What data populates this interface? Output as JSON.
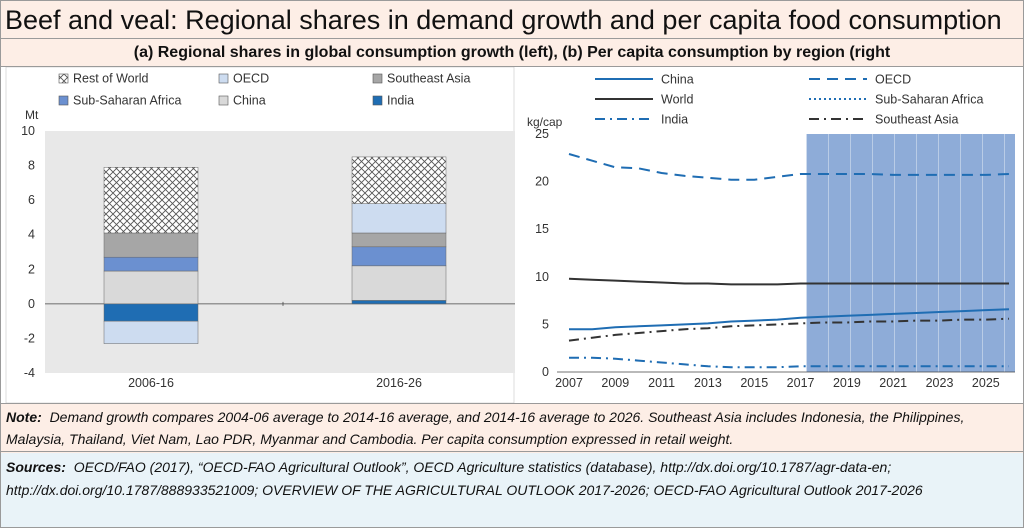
{
  "title": "Beef and veal: Regional shares in demand growth and per capita food consumption",
  "subtitle": "(a) Regional shares in global consumption growth (left), (b) Per capita consumption by region (right",
  "note": {
    "label": "Note:",
    "text": "Demand growth compares 2004-06 average to 2014-16 average, and 2014-16 average to 2026. Southeast Asia includes Indonesia, the Philippines, Malaysia, Thailand, Viet Nam, Lao PDR, Myanmar and Cambodia. Per capita consumption expressed in retail weight."
  },
  "sources": {
    "label": "Sources:",
    "text": "OECD/FAO (2017), “OECD-FAO Agricultural Outlook”, OECD Agriculture statistics (database), http://dx.doi.org/10.1787/agr-data-en; http://dx.doi.org/10.1787/888933521009; OVERVIEW OF THE AGRICULTURAL OUTLOOK 2017-2026; OECD-FAO Agricultural Outlook 2017-2026"
  },
  "colors": {
    "India": "#1f6db3",
    "China": "#d9d9d9",
    "Sub-Saharan Africa": "#6b90d0",
    "Southeast Asia": "#a6a6a6",
    "OECD": "#cddcf0",
    "Rest of World": "hatch",
    "line": "#1f6db3",
    "world": "#333333",
    "projection": "#8eacd8"
  },
  "chart_data": [
    {
      "type": "bar",
      "stacked": true,
      "ylabel": "Mt",
      "ylim": [
        -4,
        10
      ],
      "yticks": [
        -4,
        -2,
        0,
        2,
        4,
        6,
        8,
        10
      ],
      "categories": [
        "2006-16",
        "2016-26"
      ],
      "legend": [
        "Rest of World",
        "OECD",
        "Southeast Asia",
        "Sub-Saharan Africa",
        "China",
        "India"
      ],
      "series": [
        {
          "name": "India",
          "values": [
            -1.0,
            0.2
          ]
        },
        {
          "name": "China",
          "values": [
            1.9,
            2.0
          ]
        },
        {
          "name": "Sub-Saharan Africa",
          "values": [
            0.8,
            1.1
          ]
        },
        {
          "name": "Southeast Asia",
          "values": [
            1.4,
            0.8
          ]
        },
        {
          "name": "OECD",
          "values": [
            -1.3,
            1.7
          ]
        },
        {
          "name": "Rest of World",
          "values": [
            3.8,
            2.7
          ]
        }
      ],
      "grid": false
    },
    {
      "type": "line",
      "ylabel": "kg/cap",
      "ylim": [
        0,
        25
      ],
      "yticks": [
        0,
        5,
        10,
        15,
        20,
        25
      ],
      "xlim": [
        2007,
        2026
      ],
      "xticks": [
        2007,
        2009,
        2011,
        2013,
        2015,
        2017,
        2019,
        2021,
        2023,
        2025
      ],
      "projection_start": 2017,
      "x": [
        2007,
        2008,
        2009,
        2010,
        2011,
        2012,
        2013,
        2014,
        2015,
        2016,
        2017,
        2018,
        2019,
        2020,
        2021,
        2022,
        2023,
        2024,
        2025,
        2026
      ],
      "series": [
        {
          "name": "China",
          "style": "solid",
          "values": [
            4.5,
            4.5,
            4.7,
            4.8,
            4.9,
            5.0,
            5.1,
            5.3,
            5.4,
            5.5,
            5.7,
            5.8,
            5.9,
            6.0,
            6.1,
            6.2,
            6.3,
            6.4,
            6.5,
            6.6
          ]
        },
        {
          "name": "OECD",
          "style": "dashed",
          "values": [
            22.9,
            22.2,
            21.5,
            21.4,
            20.9,
            20.6,
            20.4,
            20.2,
            20.2,
            20.5,
            20.8,
            20.8,
            20.8,
            20.8,
            20.7,
            20.7,
            20.7,
            20.7,
            20.7,
            20.8
          ]
        },
        {
          "name": "World",
          "style": "solid",
          "values": [
            9.8,
            9.7,
            9.6,
            9.5,
            9.4,
            9.3,
            9.3,
            9.2,
            9.2,
            9.2,
            9.3,
            9.3,
            9.3,
            9.3,
            9.3,
            9.3,
            9.3,
            9.3,
            9.3,
            9.3
          ]
        },
        {
          "name": "Sub-Saharan Africa",
          "style": "dotted",
          "values": [
            null,
            null,
            null,
            null,
            null,
            null,
            null,
            null,
            null,
            null,
            null,
            null,
            null,
            null,
            null,
            null,
            null,
            null,
            null,
            null
          ]
        },
        {
          "name": "India",
          "style": "dashdot",
          "values": [
            1.5,
            1.5,
            1.4,
            1.2,
            1.0,
            0.8,
            0.6,
            0.5,
            0.5,
            0.5,
            0.6,
            0.6,
            0.6,
            0.6,
            0.6,
            0.6,
            0.6,
            0.6,
            0.6,
            0.6
          ]
        },
        {
          "name": "Southeast Asia",
          "style": "dashdot",
          "values": [
            3.3,
            3.6,
            3.9,
            4.1,
            4.3,
            4.5,
            4.6,
            4.8,
            4.9,
            5.0,
            5.1,
            5.2,
            5.2,
            5.3,
            5.3,
            5.4,
            5.4,
            5.5,
            5.5,
            5.6
          ]
        }
      ],
      "grid": false
    }
  ]
}
